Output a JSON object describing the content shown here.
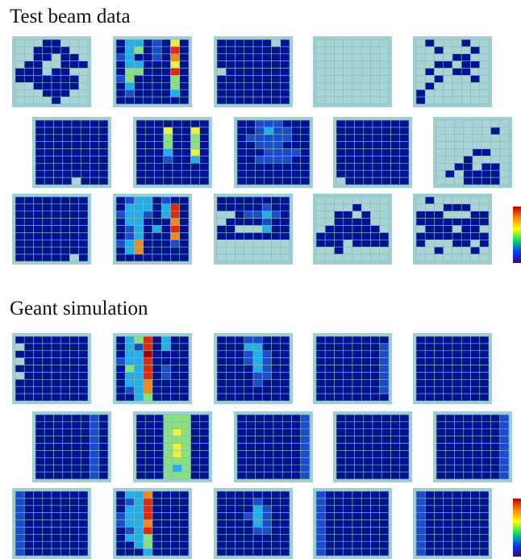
{
  "sections": [
    {
      "title": "Test beam data",
      "panels": [
        [
          "00011000",
          "00111100",
          "00110110",
          "01100111",
          "11101100",
          "11111110",
          "00111110",
          "00011100",
          "00001000"
        ],
        [
          "13312151",
          "13412171",
          "23112161",
          "13311151",
          "14411171",
          "24111141",
          "13111141",
          "12111131",
          "11111111"
        ],
        [
          "11111101",
          "11111111",
          "11111111",
          "11111111",
          "01111111",
          "11111111",
          "11111111",
          "11111111",
          "11111111"
        ],
        [
          "00000000",
          "00000000",
          "00000000",
          "00000000",
          "00000000",
          "00000000",
          "00000000",
          "00000000",
          "00000000"
        ],
        [
          "01000100",
          "00100010",
          "00001100",
          "00110110",
          "01001100",
          "00100010",
          "01000000",
          "10000000",
          "10000000"
        ],
        [
          "11111111",
          "11111111",
          "11111111",
          "11111111",
          "11111111",
          "11111111",
          "11111111",
          "11111111",
          "11110111"
        ],
        [
          "11111111",
          "11151151",
          "11141141",
          "11141141",
          "11131151",
          "11121131",
          "11111111",
          "11111111",
          "11111111"
        ],
        [
          "11222111",
          "11232211",
          "12222211",
          "11222111",
          "11122221",
          "11222211",
          "11111111",
          "11111111",
          "11111111"
        ],
        [
          "11111111",
          "11111111",
          "11111111",
          "11111111",
          "11111111",
          "11111111",
          "11111111",
          "11111111",
          "01111111"
        ],
        [
          "00000000",
          "00000010",
          "00000000",
          "00000000",
          "00001100",
          "00010000",
          "00110110",
          "01011110",
          "00011110"
        ],
        [
          "11111111",
          "11111111",
          "11111111",
          "11111111",
          "11111111",
          "11111111",
          "11111111",
          "11111111",
          "11111101"
        ],
        [
          "12331211",
          "13331371",
          "23321371",
          "13311161",
          "12313171",
          "12311161",
          "23611121",
          "13611111",
          "11111111"
        ],
        [
          "11111111",
          "11111211",
          "00122321",
          "01111211",
          "11000311",
          "11111111",
          "00000000",
          "00000000",
          "00000000"
        ],
        [
          "00000000",
          "00001000",
          "00110100",
          "00111100",
          "01111110",
          "11111111",
          "11101111",
          "00100000",
          "00000000"
        ],
        [
          "01000000",
          "00011100",
          "11100011",
          "11111111",
          "01110110",
          "11111111",
          "10001101",
          "00100010",
          "00000000"
        ]
      ]
    },
    {
      "title": "Geant simulation",
      "panels": [
        [
          "11111111",
          "01111111",
          "11111111",
          "01111111",
          "11111111",
          "01111111",
          "11111111",
          "11111111",
          "11111111"
        ],
        [
          "13471311",
          "13271311",
          "13381111",
          "23371111",
          "14371211",
          "13371211",
          "13361111",
          "12361111",
          "11341111"
        ],
        [
          "11122111",
          "11133111",
          "11123211",
          "11123211",
          "11113211",
          "11112211",
          "11112111",
          "11111111",
          "11111111"
        ],
        [
          "11111111",
          "11111112",
          "11111112",
          "11111112",
          "11111112",
          "11111112",
          "11111112",
          "11111112",
          "11111111"
        ],
        [
          "11111111",
          "11111111",
          "11111111",
          "11111111",
          "11111111",
          "11111111",
          "11111111",
          "11111111",
          "11111111"
        ],
        [
          "11111121",
          "11111121",
          "11111121",
          "11111121",
          "11111121",
          "11111121",
          "11111121",
          "11111121",
          "11111121"
        ],
        [
          "11144411",
          "11144411",
          "11145411",
          "11144411",
          "11145411",
          "11145411",
          "11144411",
          "11143411",
          "11144411"
        ],
        [
          "11111112",
          "11111112",
          "11111112",
          "11111112",
          "11111112",
          "11111112",
          "11111112",
          "11111112",
          "11111112"
        ],
        [
          "11111111",
          "11111111",
          "11111111",
          "11111111",
          "11111111",
          "11111111",
          "11111111",
          "11111111",
          "11111111"
        ],
        [
          "11111112",
          "11111112",
          "11111112",
          "11111112",
          "11111112",
          "11111112",
          "11111112",
          "11111112",
          "11111112"
        ],
        [
          "21111111",
          "21111111",
          "21111111",
          "21111111",
          "21111111",
          "21111111",
          "21111111",
          "21111111",
          "21111111"
        ],
        [
          "13361111",
          "12371111",
          "13371111",
          "23371111",
          "23361111",
          "12371111",
          "13341111",
          "11341111",
          "11131111"
        ],
        [
          "11111111",
          "11112111",
          "11113211",
          "11123211",
          "11113211",
          "11112211",
          "11111111",
          "11111111",
          "11111111"
        ],
        [
          "21111111",
          "21111111",
          "21111111",
          "21111111",
          "21111111",
          "21111111",
          "21111111",
          "21111111",
          "21111111"
        ],
        [
          "21111111",
          "21111111",
          "21111111",
          "21111111",
          "21111111",
          "21111111",
          "21111111",
          "21111111",
          "21111111"
        ]
      ]
    }
  ]
}
